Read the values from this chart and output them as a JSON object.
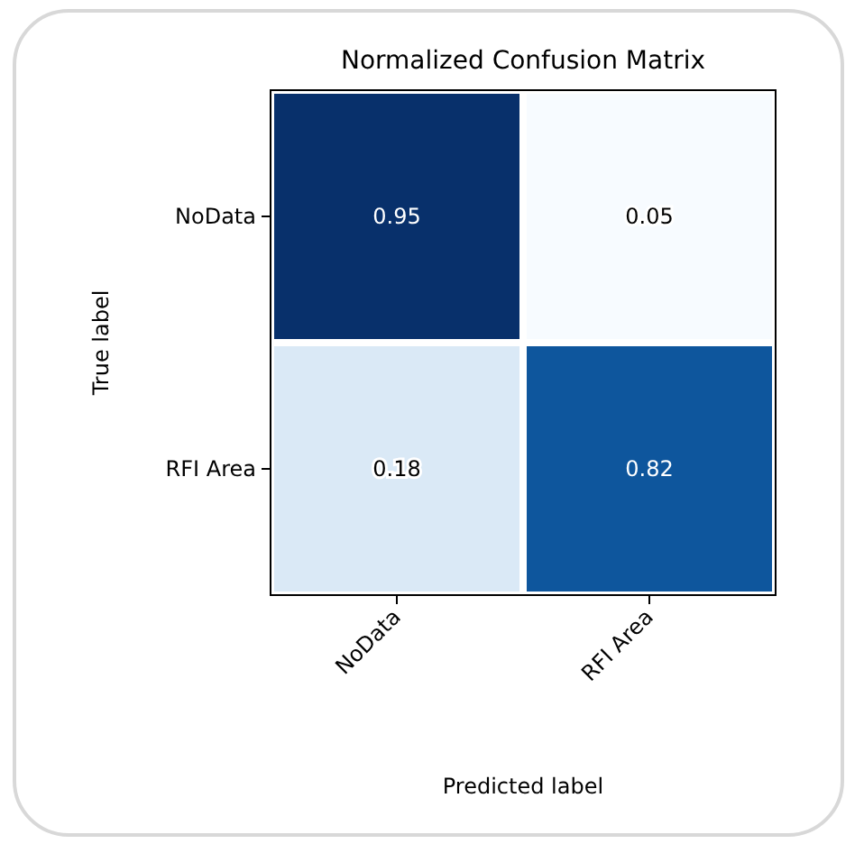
{
  "chart_data": {
    "type": "heatmap",
    "title": "Normalized Confusion Matrix",
    "xlabel": "Predicted label",
    "ylabel": "True label",
    "categories": [
      "NoData",
      "RFI Area"
    ],
    "data_labels": true,
    "y_categories": [
      "NoData",
      "RFI Area"
    ],
    "cells": [
      [
        0.95,
        0.05
      ],
      [
        0.18,
        0.82
      ]
    ]
  }
}
